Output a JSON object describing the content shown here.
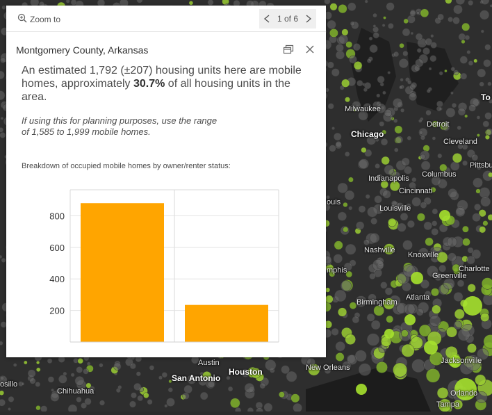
{
  "popup": {
    "zoom_label": "Zoom to",
    "pager_label": "1 of 6",
    "title": "Montgomery County, Arkansas",
    "desc_pre": "An estimated 1,792 (±207) housing units here are mobile homes, approximately ",
    "desc_bold": "30.7%",
    "desc_post": " of all housing units in the area.",
    "note_line1": "If using this for planning purposes, use the range",
    "note_line2": "of 1,585 to 1,999 mobile homes.",
    "chart_heading": "Breakdown of occupied mobile homes by owner/renter status:"
  },
  "map": {
    "cities": [
      {
        "id": "milwaukee",
        "label": "Milwaukee",
        "bold": false
      },
      {
        "id": "chicago",
        "label": "Chicago",
        "bold": true
      },
      {
        "id": "detroit",
        "label": "Detroit",
        "bold": false
      },
      {
        "id": "cleveland",
        "label": "Cleveland",
        "bold": false
      },
      {
        "id": "pittsburgh",
        "label": "Pittsbu",
        "bold": false
      },
      {
        "id": "columbus",
        "label": "Columbus",
        "bold": false
      },
      {
        "id": "indianapolis",
        "label": "Indianapolis",
        "bold": false
      },
      {
        "id": "cincinnati",
        "label": "Cincinnati",
        "bold": false
      },
      {
        "id": "stlouis",
        "label": "ouis",
        "bold": false
      },
      {
        "id": "louisville",
        "label": "Louisville",
        "bold": false
      },
      {
        "id": "nashville",
        "label": "Nashville",
        "bold": false
      },
      {
        "id": "knoxville",
        "label": "Knoxville",
        "bold": false
      },
      {
        "id": "memphis",
        "label": "mphis",
        "bold": false
      },
      {
        "id": "charlotte",
        "label": "Charlotte",
        "bold": false
      },
      {
        "id": "greenville",
        "label": "Greenville",
        "bold": false
      },
      {
        "id": "atlanta",
        "label": "Atlanta",
        "bold": false
      },
      {
        "id": "birmingham",
        "label": "Birmingham",
        "bold": false
      },
      {
        "id": "toronto",
        "label": "To",
        "bold": true
      },
      {
        "id": "austin",
        "label": "Austin",
        "bold": false
      },
      {
        "id": "sanantonio",
        "label": "San Antonio",
        "bold": true
      },
      {
        "id": "houston",
        "label": "Houston",
        "bold": true
      },
      {
        "id": "neworleans",
        "label": "New Orleans",
        "bold": false
      },
      {
        "id": "jacksonville",
        "label": "Jacksonville",
        "bold": false
      },
      {
        "id": "orlando",
        "label": "Orlando",
        "bold": false
      },
      {
        "id": "tampa",
        "label": "Tampa",
        "bold": false
      },
      {
        "id": "chihuahua",
        "label": "Chihuahua",
        "bold": false
      },
      {
        "id": "hermosillo",
        "label": "osillo",
        "bold": false
      }
    ]
  },
  "chart_data": {
    "type": "bar",
    "categories": [
      "",
      ""
    ],
    "values": [
      880,
      235
    ],
    "yticks": [
      200,
      400,
      600,
      800
    ],
    "ylim": [
      0,
      1000
    ],
    "bar_color": "#FFA500",
    "grid": true
  }
}
